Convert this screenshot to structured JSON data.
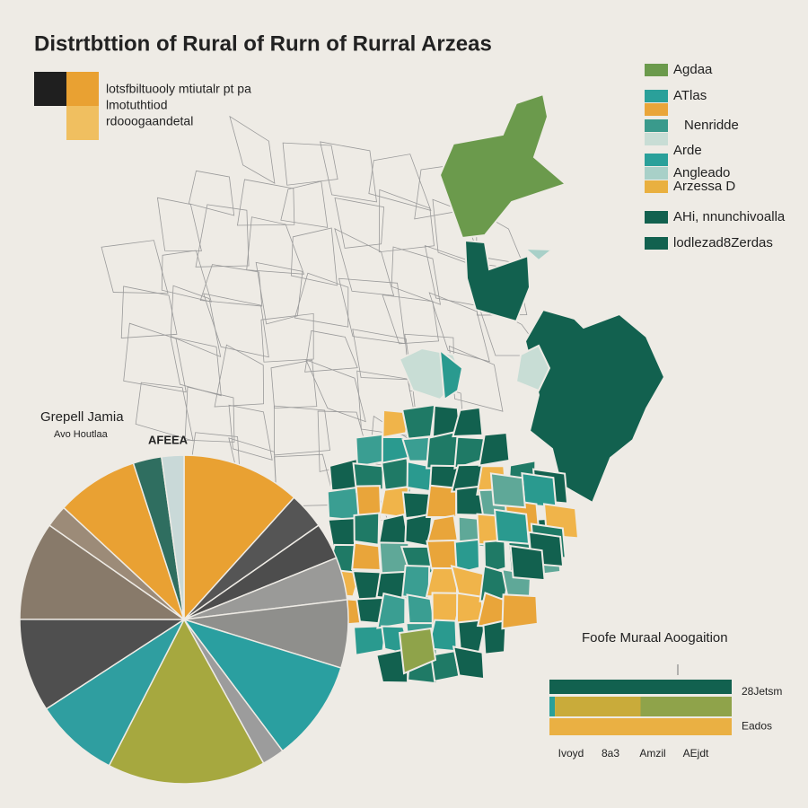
{
  "title": "Distrtbttion of Rural of Rurn of Rurral Arzeas",
  "key": {
    "colors": [
      "#1f1f1f",
      "#e9a132",
      "#f0bf60"
    ],
    "lines": [
      "lotsfbiltuooly mtiutalr pt pa",
      "lmotuthtiod",
      "rdooogaandetal"
    ]
  },
  "legend": [
    {
      "label": "Agdaa",
      "color": "#6b9a4c"
    },
    {
      "label": "ATlas",
      "color": "#2aa09a"
    },
    {
      "label": null,
      "color": "#e9a53a"
    },
    {
      "label": "Nenridde",
      "color": "#3a9a8c"
    },
    {
      "label": null,
      "color": "#c8ddd5"
    },
    {
      "label": "Arde",
      "color": "#2aa09a"
    },
    {
      "label": "Angleado",
      "color": "#a8d0c8"
    },
    {
      "label": "Arzessa D",
      "color": "#e9b040"
    },
    {
      "label": "AHi, nnunchivoalla",
      "color": "#12614f"
    },
    {
      "label": "lodlezad8Zerdas",
      "color": "#12614f"
    }
  ],
  "chart_data": [
    {
      "type": "pie",
      "title": "Grepell Jamia",
      "subtitle": "Avo Houtlaa",
      "annotation": "AFEEA",
      "values": [
        11.7,
        3.6,
        3.6,
        4.2,
        6.7,
        10,
        2.2,
        15.6,
        8.3,
        9.2,
        9.7,
        2.2,
        8.1,
        2.8,
        2.2
      ],
      "colors": [
        "#e9a132",
        "#555555",
        "#4d4d4d",
        "#9a9a98",
        "#8f8f8c",
        "#2a9fa0",
        "#9c9c9c",
        "#a6a83f",
        "#2f9ea0",
        "#4f4f4f",
        "#887a6a",
        "#9c8b78",
        "#e9a133",
        "#2f6e60",
        "#c9d9d8"
      ]
    },
    {
      "type": "bar",
      "orientation": "horizontal",
      "stacked": true,
      "title": "Foofe Muraal Aoogaition",
      "categories": [
        "28Jetsm",
        null,
        "Eados"
      ],
      "axis_labels": [
        "Ivoyd",
        "8a3",
        "Amzil",
        "AEjdt"
      ],
      "xlim": [
        0,
        100
      ],
      "series": [
        {
          "color": "#12614f",
          "values": [
            100,
            null,
            null
          ]
        },
        {
          "color": "#2aa09a",
          "values": [
            null,
            3,
            null
          ]
        },
        {
          "color": "#c9ab3a",
          "values": [
            null,
            47,
            null
          ]
        },
        {
          "color": "#8fa34a",
          "values": [
            null,
            50,
            null
          ]
        },
        {
          "color": "#eab043",
          "values": [
            null,
            null,
            100
          ]
        }
      ]
    }
  ]
}
